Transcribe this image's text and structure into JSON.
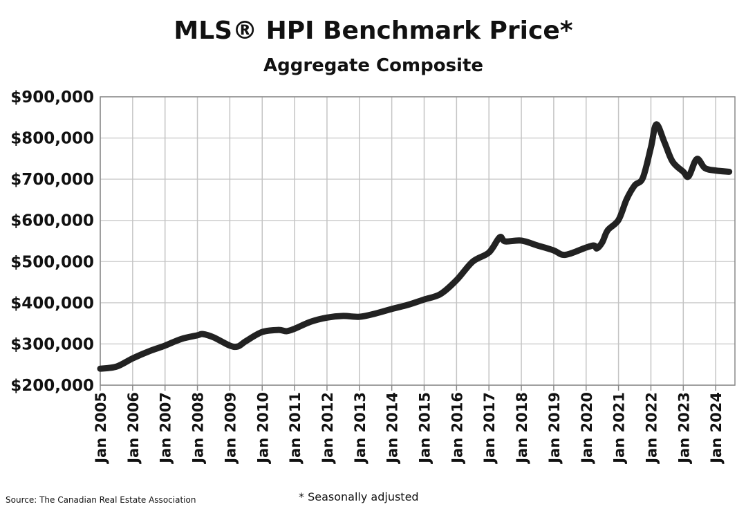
{
  "chart_data": {
    "type": "line",
    "title": "MLS® HPI Benchmark Price*",
    "subtitle": "Aggregate Composite",
    "xlabel": "",
    "ylabel": "",
    "ylim": [
      200000,
      900000
    ],
    "xlim": [
      "2005-01",
      "2024-07"
    ],
    "grid": true,
    "line_color": "#222222",
    "yticks": [
      {
        "value": 900000,
        "label": "$900,000"
      },
      {
        "value": 800000,
        "label": "$800,000"
      },
      {
        "value": 700000,
        "label": "$700,000"
      },
      {
        "value": 600000,
        "label": "$600,000"
      },
      {
        "value": 500000,
        "label": "$500,000"
      },
      {
        "value": 400000,
        "label": "$400,000"
      },
      {
        "value": 300000,
        "label": "$300,000"
      },
      {
        "value": 200000,
        "label": "$200,000"
      }
    ],
    "xticks": [
      {
        "value": "2005-01",
        "label": "Jan 2005"
      },
      {
        "value": "2006-01",
        "label": "Jan 2006"
      },
      {
        "value": "2007-01",
        "label": "Jan 2007"
      },
      {
        "value": "2008-01",
        "label": "Jan 2008"
      },
      {
        "value": "2009-01",
        "label": "Jan 2009"
      },
      {
        "value": "2010-01",
        "label": "Jan 2010"
      },
      {
        "value": "2011-01",
        "label": "Jan 2011"
      },
      {
        "value": "2012-01",
        "label": "Jan 2012"
      },
      {
        "value": "2013-01",
        "label": "Jan 2013"
      },
      {
        "value": "2014-01",
        "label": "Jan 2014"
      },
      {
        "value": "2015-01",
        "label": "Jan 2015"
      },
      {
        "value": "2016-01",
        "label": "Jan 2016"
      },
      {
        "value": "2017-01",
        "label": "Jan 2017"
      },
      {
        "value": "2018-01",
        "label": "Jan 2018"
      },
      {
        "value": "2019-01",
        "label": "Jan 2019"
      },
      {
        "value": "2020-01",
        "label": "Jan 2020"
      },
      {
        "value": "2021-01",
        "label": "Jan 2021"
      },
      {
        "value": "2022-01",
        "label": "Jan 2022"
      },
      {
        "value": "2023-01",
        "label": "Jan 2023"
      },
      {
        "value": "2024-01",
        "label": "Jan 2024"
      }
    ],
    "series": [
      {
        "x": [
          "2005-01",
          "2005-07",
          "2006-01",
          "2006-07",
          "2007-01",
          "2007-07",
          "2008-01",
          "2008-03",
          "2008-07",
          "2009-01",
          "2009-04",
          "2009-07",
          "2010-01",
          "2010-07",
          "2010-10",
          "2011-01",
          "2011-07",
          "2012-01",
          "2012-07",
          "2013-01",
          "2013-07",
          "2014-01",
          "2014-07",
          "2015-01",
          "2015-07",
          "2016-01",
          "2016-07",
          "2017-01",
          "2017-05",
          "2017-07",
          "2018-01",
          "2018-07",
          "2019-01",
          "2019-04",
          "2019-07",
          "2020-01",
          "2020-04",
          "2020-05",
          "2020-07",
          "2020-09",
          "2021-01",
          "2021-04",
          "2021-07",
          "2021-10",
          "2022-01",
          "2022-03",
          "2022-06",
          "2022-09",
          "2023-01",
          "2023-03",
          "2023-06",
          "2023-09",
          "2024-01",
          "2024-06"
        ],
        "values": [
          240000,
          245000,
          265000,
          282000,
          296000,
          312000,
          321000,
          324000,
          316000,
          296000,
          294000,
          307000,
          329000,
          334000,
          331000,
          337000,
          354000,
          364000,
          368000,
          366000,
          374000,
          385000,
          395000,
          408000,
          421000,
          455000,
          500000,
          522000,
          559000,
          549000,
          551000,
          539000,
          527000,
          517000,
          519000,
          534000,
          539000,
          532000,
          547000,
          576000,
          601000,
          651000,
          685000,
          703000,
          777000,
          833000,
          790000,
          743000,
          718000,
          707000,
          749000,
          727000,
          721000,
          718000
        ]
      }
    ]
  },
  "footer": {
    "source": "Source: The Canadian Real Estate Association",
    "note": "* Seasonally adjusted"
  }
}
